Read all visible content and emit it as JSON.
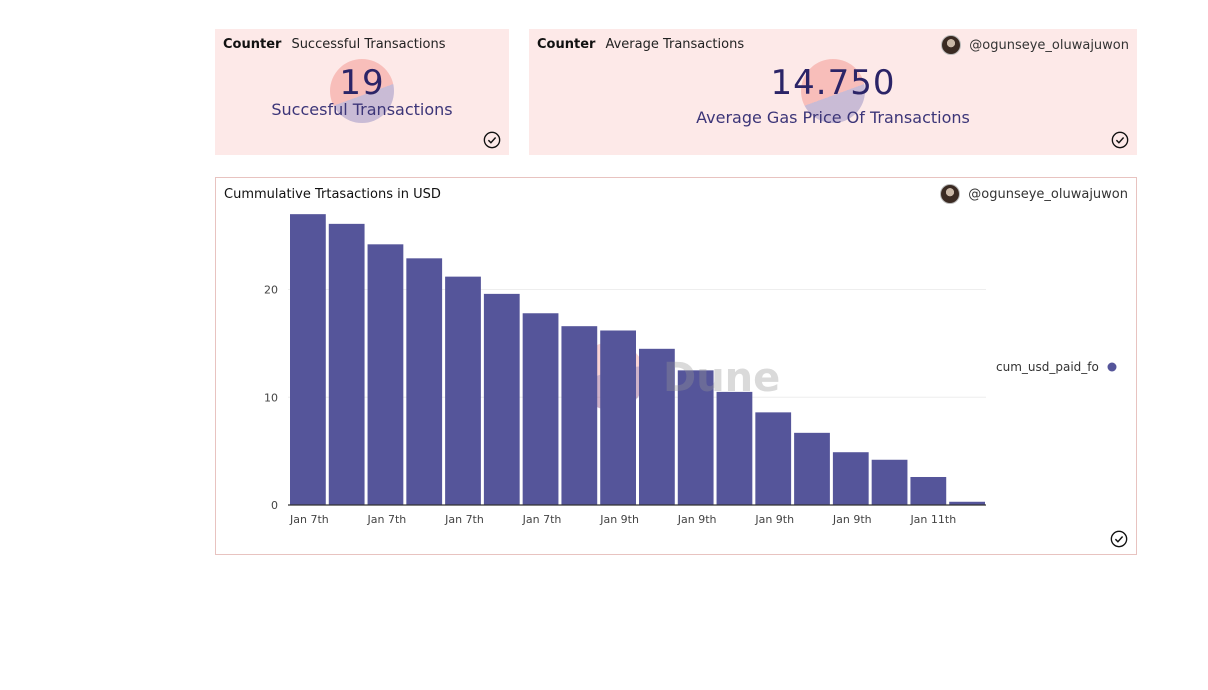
{
  "cards": [
    {
      "type": "Counter",
      "title": "Successful Transactions",
      "value": "19",
      "label": "Succesful Transactions"
    },
    {
      "type": "Counter",
      "title": "Average Transactions",
      "value": "14.750",
      "label": "Average Gas Price Of Transactions",
      "author": "@ogunseye_oluwajuwon"
    }
  ],
  "chart_card": {
    "title": "Cummulative Trtasactions in USD",
    "author": "@ogunseye_oluwajuwon",
    "watermark": "Dune"
  },
  "chart_data": {
    "type": "bar",
    "title": "Cummulative Trtasactions in USD",
    "categories": [
      "Jan 7th",
      "Jan 7th",
      "Jan 7th",
      "Jan 7th",
      "Jan 7th",
      "Jan 7th",
      "Jan 7th",
      "Jan 7th",
      "Jan 9th",
      "Jan 9th",
      "Jan 9th",
      "Jan 9th",
      "Jan 9th",
      "Jan 9th",
      "Jan 9th",
      "Jan 9th",
      "Jan 11th",
      "Jan 11th"
    ],
    "tick_labels": [
      "Jan 7th",
      "Jan 7th",
      "Jan 7th",
      "Jan 7th",
      "Jan 9th",
      "Jan 9th",
      "Jan 9th",
      "Jan 9th",
      "Jan 11th"
    ],
    "series": [
      {
        "name": "cum_usd_paid_fo",
        "color": "#55559a",
        "values": [
          27.0,
          26.1,
          24.2,
          22.9,
          21.2,
          19.6,
          17.8,
          16.6,
          16.2,
          14.5,
          12.5,
          10.5,
          8.6,
          6.7,
          4.9,
          4.2,
          2.6,
          0.3
        ]
      }
    ],
    "ylim": [
      0,
      28.5
    ],
    "yticks": [
      0,
      10,
      20
    ],
    "grid": true,
    "legend": "right",
    "xlabel": "",
    "ylabel": ""
  }
}
